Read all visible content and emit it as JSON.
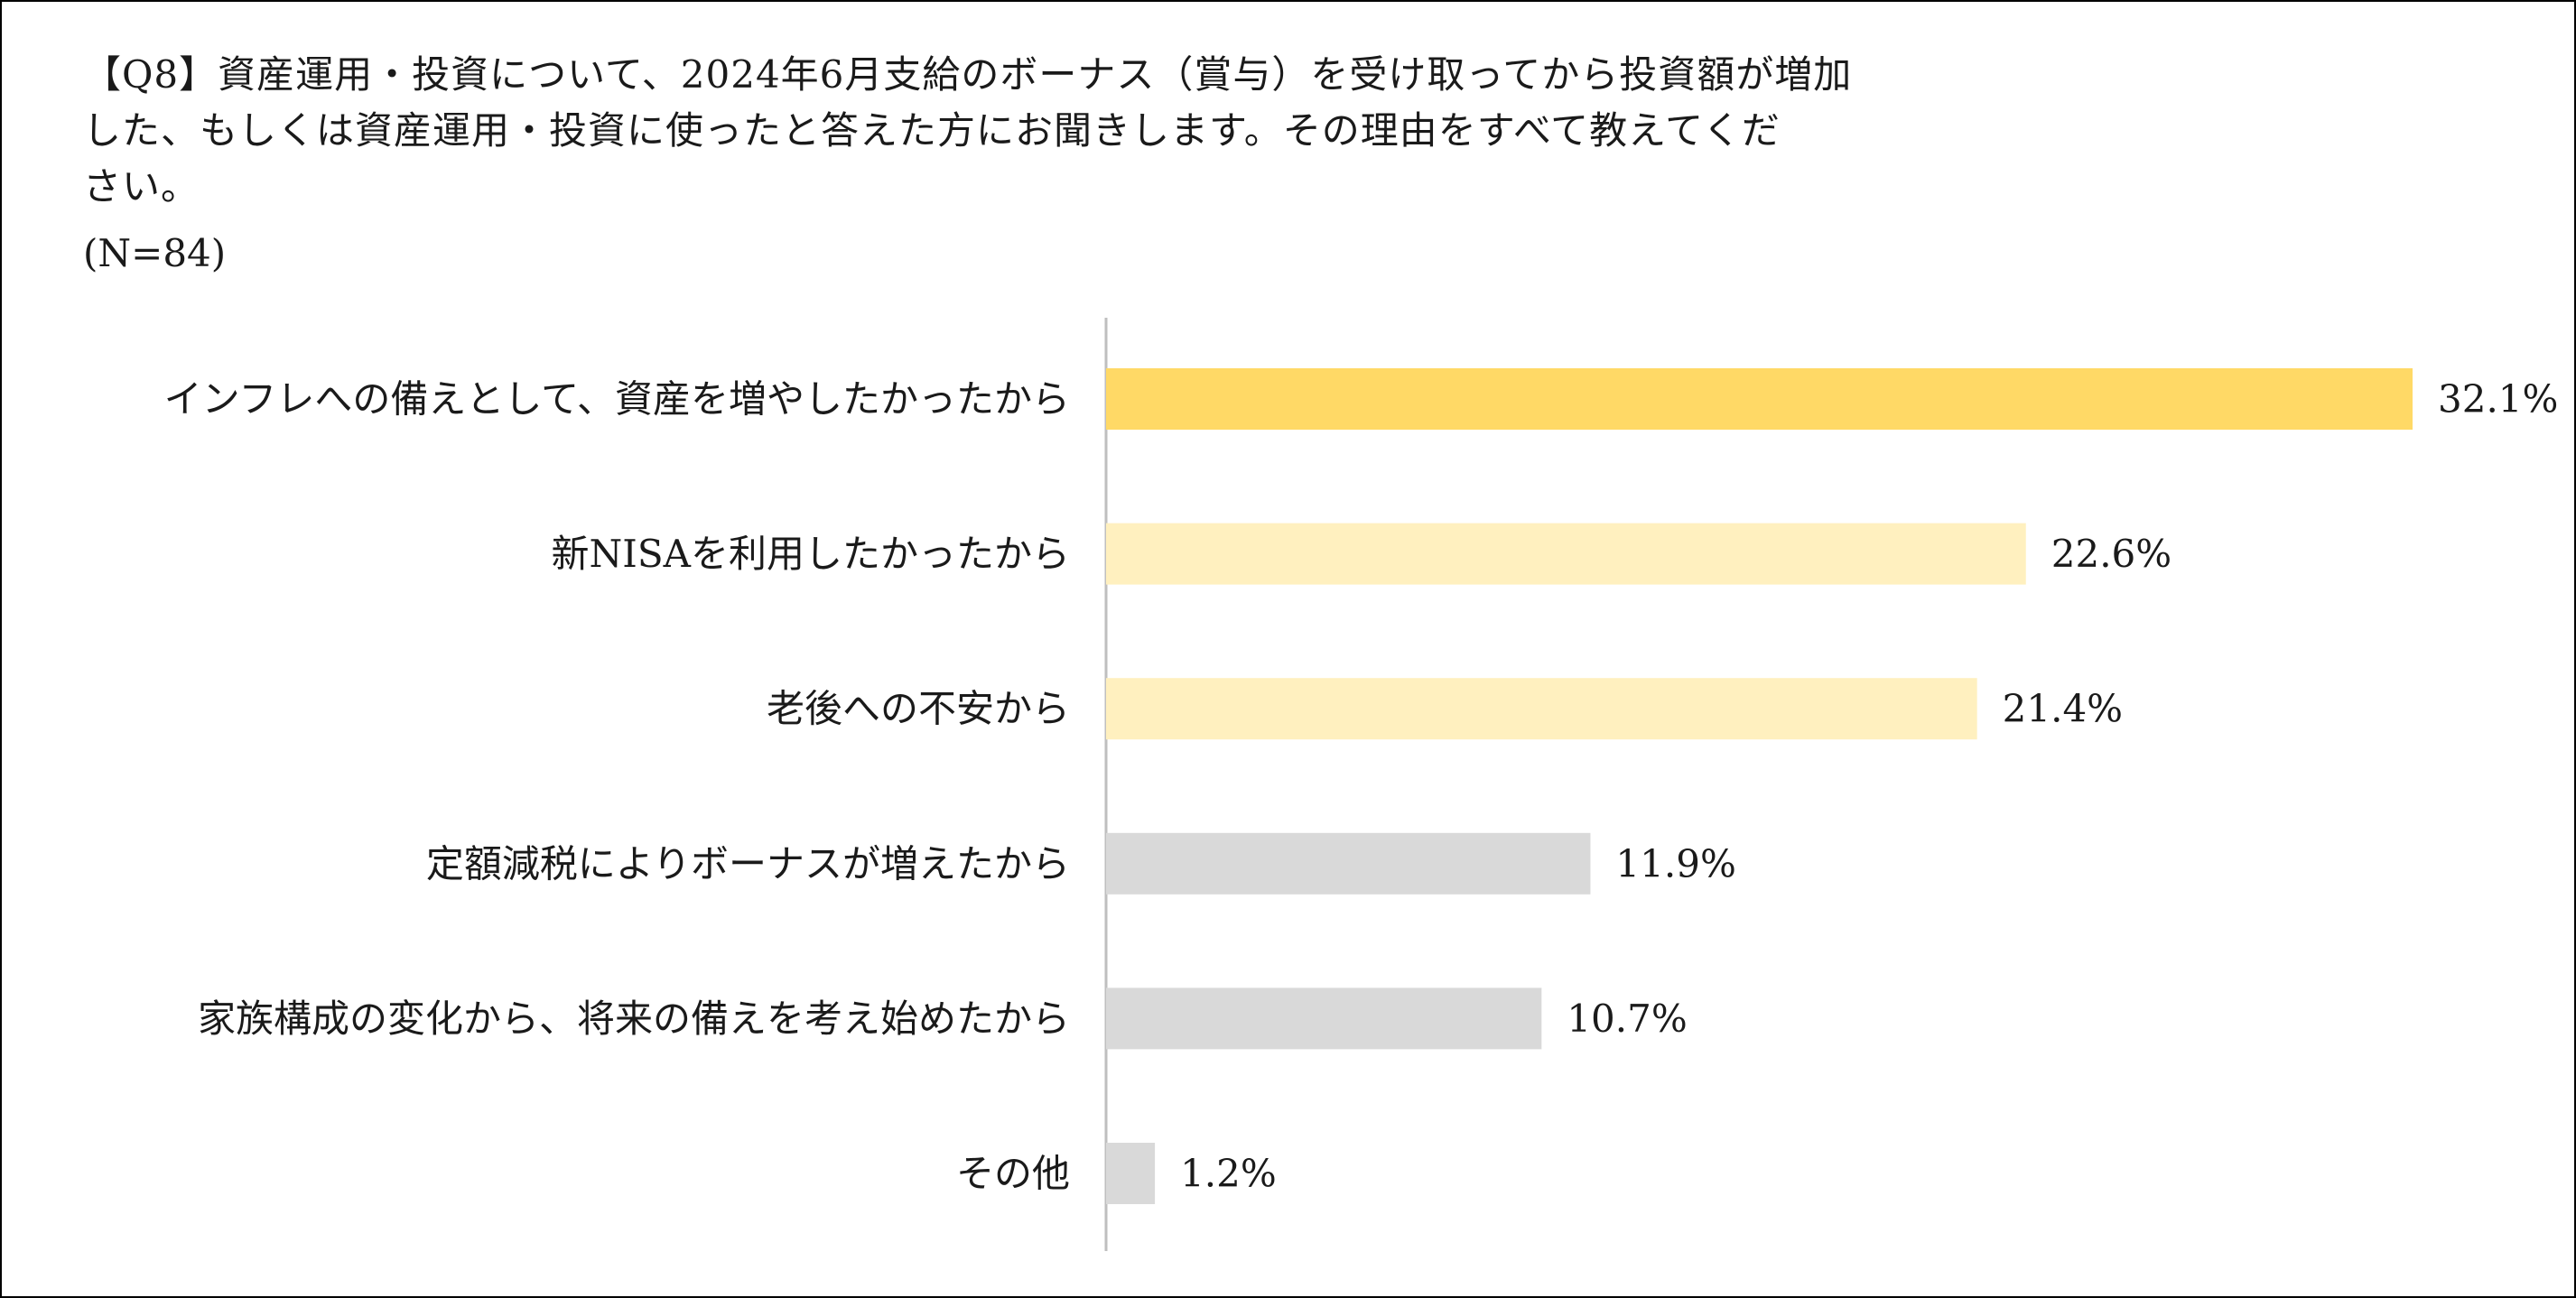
{
  "header": {
    "question_lines": [
      "【Q8】資産運用・投資について、2024年6月支給のボーナス（賞与）を受け取ってから投資額が増加",
      "した、もしくは資産運用・投資に使ったと答えた方にお聞きします。その理由をすべて教えてくだ",
      "さい。"
    ],
    "sample_size": "(N=84)"
  },
  "colors": {
    "highlight": "#FFD966",
    "secondary": "#FFF0BF",
    "neutral": "#D9D9D9",
    "axis": "#BFBFBF",
    "border": "#000000"
  },
  "chart_data": {
    "type": "bar",
    "orientation": "horizontal",
    "categories": [
      "インフレへの備えとして、資産を増やしたかったから",
      "新NISAを利用したかったから",
      "老後への不安から",
      "定額減税によりボーナスが増えたから",
      "家族構成の変化から、将来の備えを考え始めたから",
      "その他"
    ],
    "values": [
      32.1,
      22.6,
      21.4,
      11.9,
      10.7,
      1.2
    ],
    "data_labels": [
      "32.1%",
      "22.6%",
      "21.4%",
      "11.9%",
      "10.7%",
      "1.2%"
    ],
    "bar_colors": [
      "#FFD966",
      "#FFF0BF",
      "#FFF0BF",
      "#D9D9D9",
      "#D9D9D9",
      "#D9D9D9"
    ],
    "unit": "%",
    "xlim": [
      0,
      32.1
    ],
    "grid": false,
    "legend": "none"
  }
}
